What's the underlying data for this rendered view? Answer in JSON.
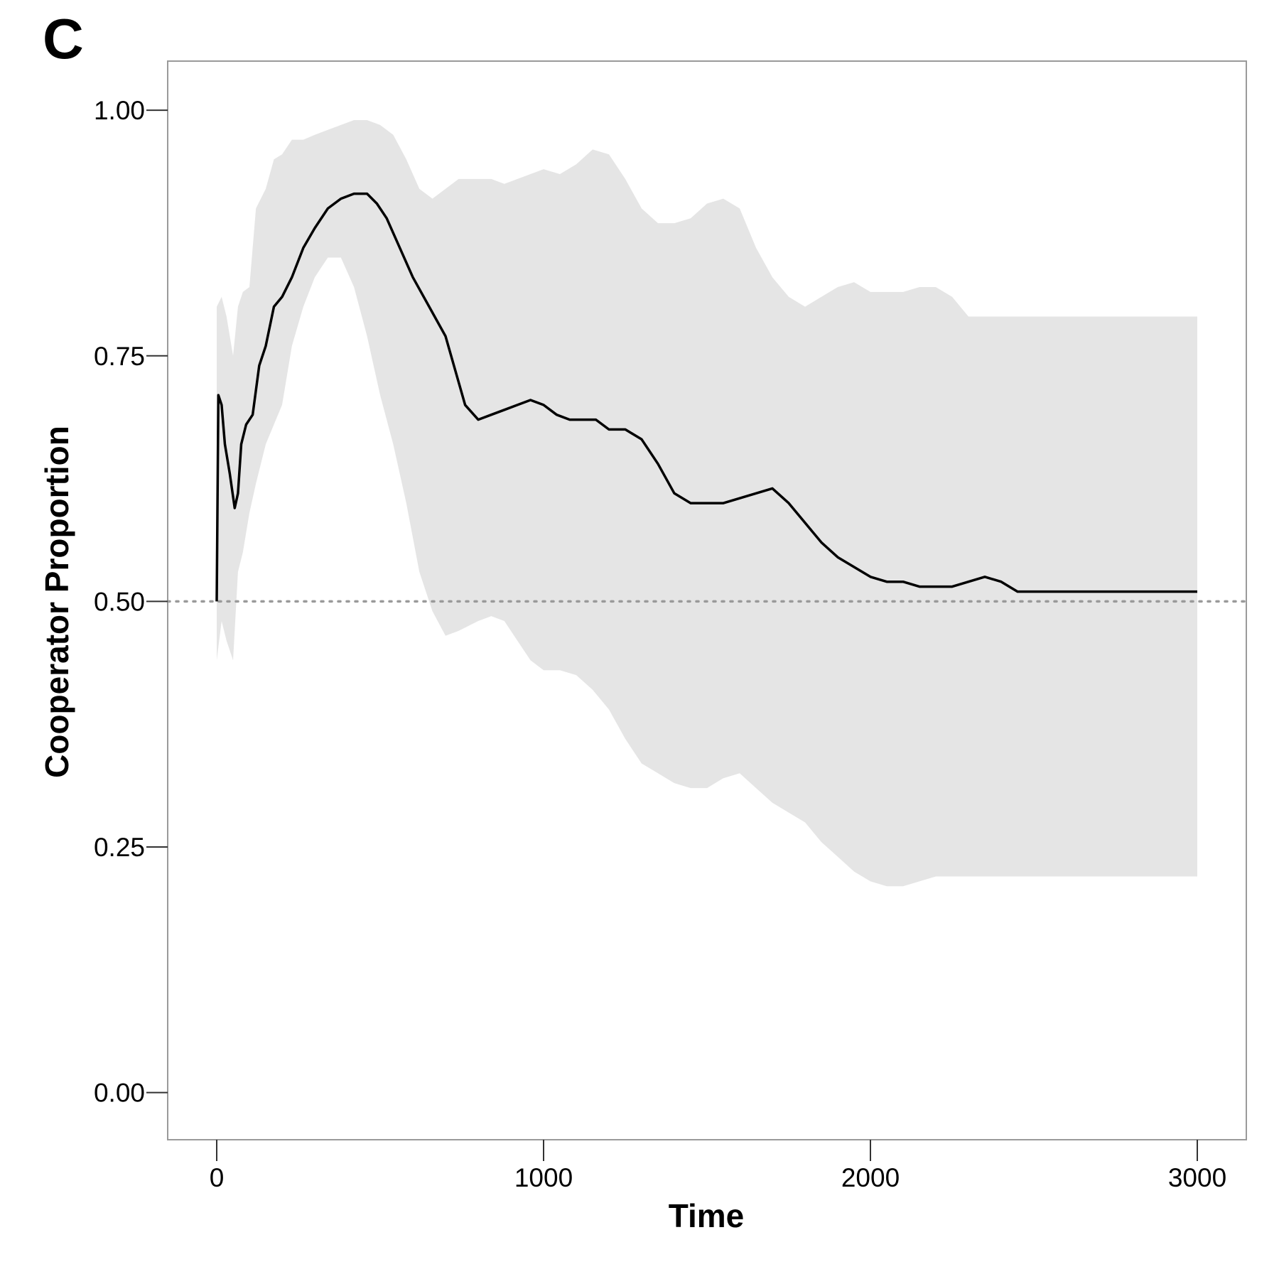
{
  "panel_label": "C",
  "colors": {
    "band": "#e5e5e5",
    "line": "#000000",
    "reference": "#9a9a9a",
    "frame": "#9a9a9a"
  },
  "chart_data": {
    "type": "line",
    "xlabel": "Time",
    "ylabel": "Cooperator Proportion",
    "xlim": [
      -150,
      3150
    ],
    "ylim": [
      -0.048,
      1.05
    ],
    "xticks": [
      0,
      1000,
      2000,
      3000
    ],
    "xtick_labels": [
      "0",
      "1000",
      "2000",
      "3000"
    ],
    "yticks": [
      0,
      0.25,
      0.5,
      0.75,
      1.0
    ],
    "ytick_labels": [
      "0.00",
      "0.25",
      "0.50",
      "0.75",
      "1.00"
    ],
    "grid": false,
    "legend": "none",
    "reference_line": {
      "y": 0.5,
      "style": "dotted"
    },
    "series": [
      {
        "kind": "line",
        "x": [
          0,
          5,
          15,
          25,
          40,
          55,
          65,
          75,
          90,
          110,
          130,
          150,
          175,
          200,
          230,
          265,
          300,
          340,
          380,
          420,
          460,
          490,
          520,
          560,
          600,
          650,
          700,
          760,
          800,
          840,
          880,
          920,
          960,
          1000,
          1040,
          1080,
          1120,
          1160,
          1200,
          1250,
          1300,
          1350,
          1400,
          1450,
          1500,
          1550,
          1600,
          1650,
          1700,
          1750,
          1800,
          1850,
          1900,
          1950,
          2000,
          2050,
          2100,
          2150,
          2200,
          2250,
          2300,
          2350,
          2400,
          2450,
          2500,
          2550,
          2600,
          2650,
          2700,
          2750,
          2800,
          2850,
          2900,
          2950,
          3000
        ],
        "y": [
          0.5,
          0.71,
          0.7,
          0.66,
          0.63,
          0.595,
          0.61,
          0.66,
          0.68,
          0.69,
          0.74,
          0.76,
          0.8,
          0.81,
          0.83,
          0.86,
          0.88,
          0.9,
          0.91,
          0.915,
          0.915,
          0.905,
          0.89,
          0.86,
          0.83,
          0.8,
          0.77,
          0.7,
          0.685,
          0.69,
          0.695,
          0.7,
          0.705,
          0.7,
          0.69,
          0.685,
          0.685,
          0.685,
          0.675,
          0.675,
          0.665,
          0.64,
          0.61,
          0.6,
          0.6,
          0.6,
          0.605,
          0.61,
          0.615,
          0.6,
          0.58,
          0.56,
          0.545,
          0.535,
          0.525,
          0.52,
          0.52,
          0.515,
          0.515,
          0.515,
          0.52,
          0.525,
          0.52,
          0.51,
          0.51,
          0.51,
          0.51,
          0.51,
          0.51,
          0.51,
          0.51,
          0.51,
          0.51,
          0.51,
          0.51
        ]
      },
      {
        "kind": "band",
        "x": [
          0,
          15,
          30,
          50,
          65,
          80,
          100,
          120,
          150,
          175,
          200,
          230,
          265,
          300,
          340,
          380,
          420,
          460,
          500,
          540,
          580,
          620,
          660,
          700,
          740,
          800,
          840,
          880,
          920,
          960,
          1000,
          1050,
          1100,
          1150,
          1200,
          1250,
          1300,
          1350,
          1400,
          1450,
          1500,
          1550,
          1600,
          1650,
          1700,
          1750,
          1800,
          1850,
          1900,
          1950,
          2000,
          2050,
          2100,
          2150,
          2200,
          2250,
          2300,
          2350,
          2400,
          2450,
          2500,
          2550,
          2600,
          2650,
          2700,
          2750,
          2800,
          2850,
          2900,
          2950,
          3000
        ],
        "upper": [
          0.8,
          0.81,
          0.79,
          0.75,
          0.8,
          0.815,
          0.82,
          0.9,
          0.92,
          0.95,
          0.955,
          0.97,
          0.97,
          0.975,
          0.98,
          0.985,
          0.99,
          0.99,
          0.985,
          0.975,
          0.95,
          0.92,
          0.91,
          0.92,
          0.93,
          0.93,
          0.93,
          0.925,
          0.93,
          0.935,
          0.94,
          0.935,
          0.945,
          0.96,
          0.955,
          0.93,
          0.9,
          0.885,
          0.885,
          0.89,
          0.905,
          0.91,
          0.9,
          0.86,
          0.83,
          0.81,
          0.8,
          0.81,
          0.82,
          0.825,
          0.815,
          0.815,
          0.815,
          0.82,
          0.82,
          0.81,
          0.79,
          0.79,
          0.79,
          0.79,
          0.79,
          0.79,
          0.79,
          0.79,
          0.79,
          0.79,
          0.79,
          0.79,
          0.79,
          0.79,
          0.79
        ],
        "lower": [
          0.44,
          0.48,
          0.46,
          0.44,
          0.53,
          0.55,
          0.59,
          0.62,
          0.66,
          0.68,
          0.7,
          0.76,
          0.8,
          0.83,
          0.85,
          0.85,
          0.82,
          0.77,
          0.71,
          0.66,
          0.6,
          0.53,
          0.49,
          0.465,
          0.47,
          0.48,
          0.485,
          0.48,
          0.46,
          0.44,
          0.43,
          0.43,
          0.425,
          0.41,
          0.39,
          0.36,
          0.335,
          0.325,
          0.315,
          0.31,
          0.31,
          0.32,
          0.325,
          0.31,
          0.295,
          0.285,
          0.275,
          0.255,
          0.24,
          0.225,
          0.215,
          0.21,
          0.21,
          0.215,
          0.22,
          0.22,
          0.22,
          0.22,
          0.22,
          0.22,
          0.22,
          0.22,
          0.22,
          0.22,
          0.22,
          0.22,
          0.22,
          0.22,
          0.22,
          0.22,
          0.22
        ]
      }
    ]
  }
}
